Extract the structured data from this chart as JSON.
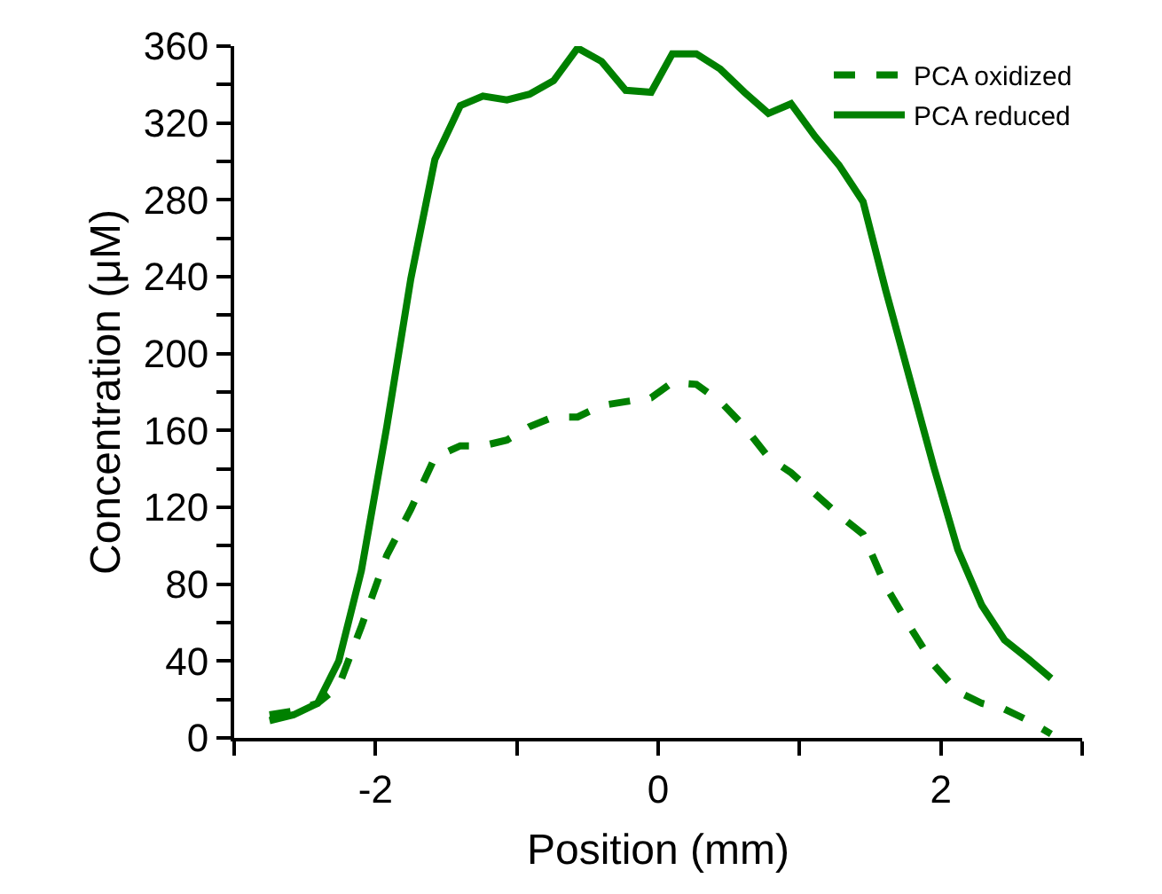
{
  "chart_data": {
    "type": "line",
    "xlabel": "Position (mm)",
    "ylabel": "Concentration (μM)",
    "xlim": [
      -3,
      3
    ],
    "xticks": [
      {
        "value": -3,
        "label": null
      },
      -2,
      {
        "value": -1,
        "label": null
      },
      0,
      {
        "value": 1,
        "label": null
      },
      2,
      {
        "value": 3,
        "label": null
      }
    ],
    "ylim": [
      0,
      360
    ],
    "yticks": [
      0,
      {
        "value": 20,
        "label": null
      },
      40,
      {
        "value": 60,
        "label": null
      },
      80,
      {
        "value": 100,
        "label": null
      },
      120,
      {
        "value": 140,
        "label": null
      },
      160,
      {
        "value": 180,
        "label": null
      },
      200,
      {
        "value": 220,
        "label": null
      },
      240,
      {
        "value": 260,
        "label": null
      },
      280,
      {
        "value": 300,
        "label": null
      },
      320,
      {
        "value": 340,
        "label": null
      },
      360
    ],
    "legend": "top right",
    "marker": "none",
    "x": [
      -2.75,
      -2.58,
      -2.41,
      -2.26,
      -2.1,
      -1.92,
      -1.75,
      -1.58,
      -1.4,
      -1.24,
      -1.07,
      -0.91,
      -0.74,
      -0.57,
      -0.4,
      -0.23,
      -0.05,
      0.1,
      0.27,
      0.44,
      0.61,
      0.78,
      0.94,
      1.11,
      1.28,
      1.45,
      1.61,
      1.78,
      1.95,
      2.12,
      2.29,
      2.45,
      2.62,
      2.78
    ],
    "series": [
      {
        "name": "PCA oxidized",
        "color": "#008000",
        "line_style": "dashed",
        "values": [
          12,
          14,
          18,
          27,
          58,
          95,
          119,
          146,
          152,
          152,
          155,
          162,
          167,
          167,
          173,
          175,
          177,
          185,
          184,
          175,
          162,
          146,
          138,
          127,
          116,
          106,
          79,
          58,
          38,
          24,
          18,
          15,
          9,
          2
        ]
      },
      {
        "name": "PCA reduced",
        "color": "#008000",
        "line_style": "solid",
        "values": [
          9,
          12,
          18,
          40,
          87,
          162,
          239,
          301,
          329,
          334,
          332,
          335,
          342,
          359,
          352,
          337,
          336,
          356,
          356,
          348,
          336,
          325,
          330,
          313,
          298,
          279,
          233,
          187,
          141,
          98,
          69,
          51,
          41,
          31
        ]
      }
    ]
  }
}
